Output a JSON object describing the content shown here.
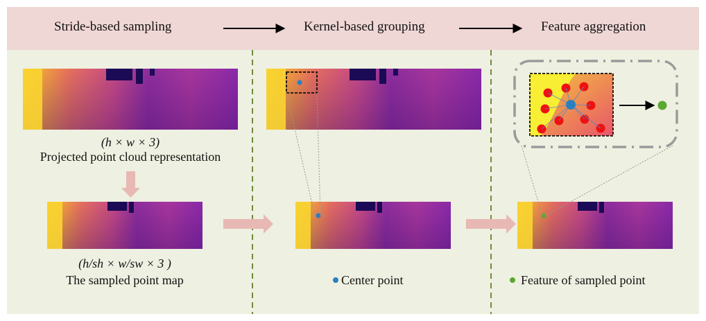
{
  "header": {
    "stage1": "Stride-based sampling",
    "stage2": "Kernel-based grouping",
    "stage3": "Feature aggregation"
  },
  "labels": {
    "proj_dims": "(h × w × 3)",
    "proj_desc": "Projected point cloud representation",
    "sampled_dims": "(h/sh × w/sw × 3 )",
    "sampled_desc": "The sampled point map",
    "center_legend": "Center point",
    "feature_legend": "Feature of sampled point"
  },
  "colors": {
    "header_bg": "#efd7d5",
    "body_bg": "#eef0e1",
    "divider": "#6f8a3a",
    "center_point": "#2a7fc0",
    "feature_point": "#5aa832",
    "neighbor_point": "#ee1111",
    "flow_arrow": "#e8b8b4"
  }
}
